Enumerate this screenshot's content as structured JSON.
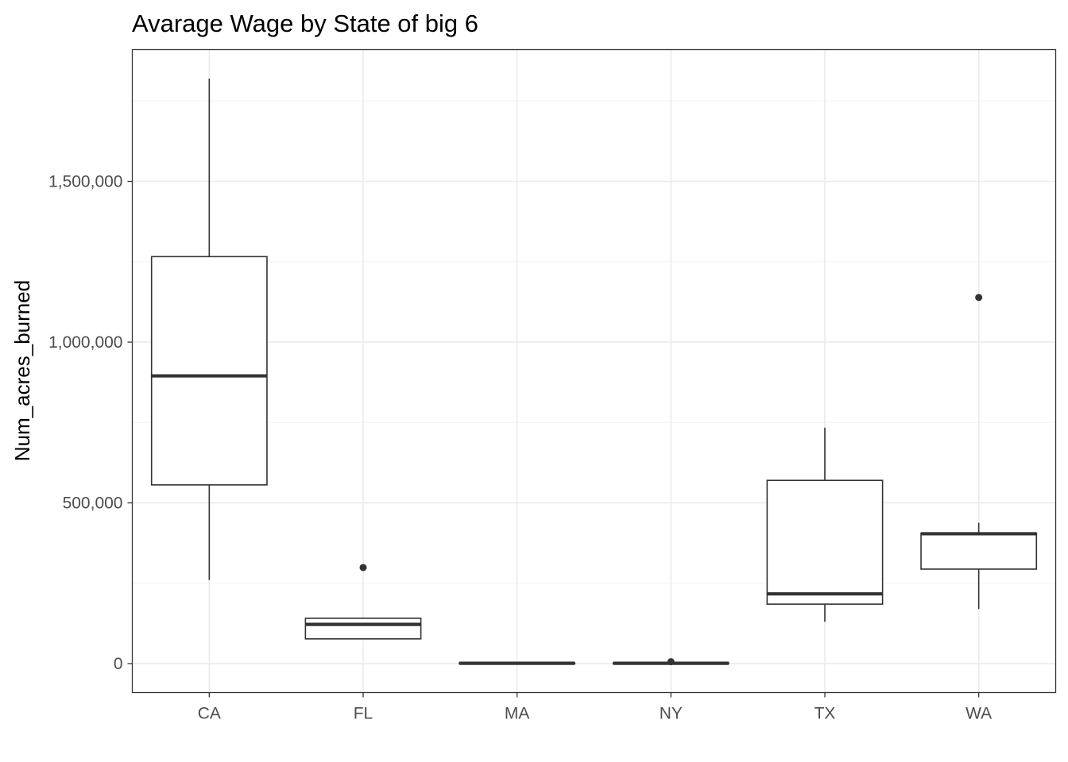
{
  "chart_data": {
    "type": "boxplot",
    "title": "Avarage Wage by State of big 6",
    "xlabel": "",
    "ylabel": "Num_acres_burned",
    "ylim": [
      -90000,
      1910000
    ],
    "y_ticks": [
      0,
      500000,
      1000000,
      1500000
    ],
    "y_tick_labels": [
      "0",
      "500,000",
      "1,000,000",
      "1,500,000"
    ],
    "grid": true,
    "categories": [
      "CA",
      "FL",
      "MA",
      "NY",
      "TX",
      "WA"
    ],
    "boxes": [
      {
        "category": "CA",
        "whisker_low": 260000,
        "q1": 556000,
        "median": 895000,
        "q3": 1266000,
        "whisker_high": 1820000,
        "outliers": []
      },
      {
        "category": "FL",
        "whisker_low": 77000,
        "q1": 77000,
        "median": 122000,
        "q3": 141000,
        "whisker_high": 141000,
        "outliers": [
          299000
        ]
      },
      {
        "category": "MA",
        "whisker_low": 0,
        "q1": 0,
        "median": 1000,
        "q3": 2000,
        "whisker_high": 3000,
        "outliers": []
      },
      {
        "category": "NY",
        "whisker_low": 0,
        "q1": 0,
        "median": 1000,
        "q3": 2000,
        "whisker_high": 3000,
        "outliers": [
          6000
        ]
      },
      {
        "category": "TX",
        "whisker_low": 130000,
        "q1": 185000,
        "median": 217000,
        "q3": 570000,
        "whisker_high": 734000,
        "outliers": []
      },
      {
        "category": "WA",
        "whisker_low": 170000,
        "q1": 294000,
        "median": 404000,
        "q3": 406000,
        "whisker_high": 438000,
        "outliers": [
          1139000
        ]
      }
    ]
  }
}
